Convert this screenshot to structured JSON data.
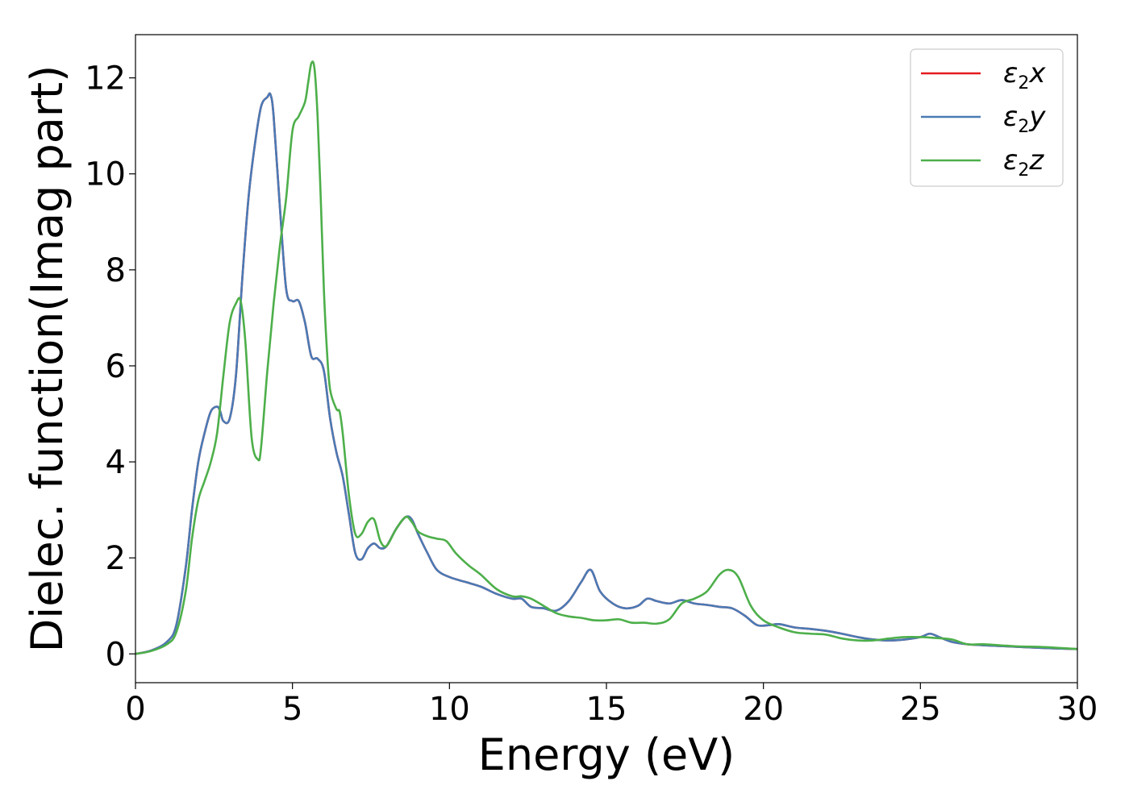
{
  "chart_data": {
    "type": "line",
    "xlabel": "Energy (eV)",
    "ylabel": "Dielec. function(Imag part)",
    "xlim": [
      0,
      30
    ],
    "ylim": [
      -0.6,
      12.9
    ],
    "xticks": [
      0,
      5,
      10,
      15,
      20,
      25,
      30
    ],
    "yticks": [
      0,
      2,
      4,
      6,
      8,
      10,
      12
    ],
    "legend_placement": "top-right",
    "grid": false,
    "series": [
      {
        "name": "ε2x",
        "legend_base": "ε",
        "legend_sub": "2",
        "legend_suffix": "x",
        "color": "#e41a1c",
        "x": [
          0,
          0.5,
          1,
          1.3,
          1.6,
          1.8,
          2,
          2.2,
          2.4,
          2.6,
          2.7,
          2.8,
          3,
          3.2,
          3.4,
          3.6,
          3.8,
          4,
          4.2,
          4.3,
          4.4,
          4.6,
          4.8,
          5,
          5.2,
          5.4,
          5.6,
          5.8,
          6,
          6.2,
          6.4,
          6.6,
          6.8,
          7,
          7.2,
          7.4,
          7.6,
          7.8,
          8,
          8.3,
          8.6,
          8.8,
          9,
          9.3,
          9.6,
          10,
          10.5,
          11,
          11.5,
          12,
          12.3,
          12.6,
          13,
          13.4,
          13.8,
          14.2,
          14.5,
          14.8,
          15.2,
          15.6,
          16,
          16.3,
          16.6,
          17,
          17.4,
          17.8,
          18.2,
          18.6,
          19,
          19.4,
          19.8,
          20.2,
          20.5,
          21,
          21.5,
          22,
          22.5,
          23,
          23.5,
          24,
          24.5,
          25,
          25.3,
          25.6,
          26,
          26.5,
          27,
          28,
          29,
          30
        ],
        "y": [
          0,
          0.07,
          0.25,
          0.6,
          1.8,
          3,
          4,
          4.6,
          5.05,
          5.15,
          5.05,
          4.85,
          4.9,
          5.8,
          7.8,
          9.5,
          10.6,
          11.4,
          11.6,
          11.65,
          11.2,
          9.3,
          7.6,
          7.35,
          7.35,
          6.9,
          6.2,
          6.15,
          5.9,
          4.9,
          4.2,
          3.7,
          2.9,
          2.1,
          1.97,
          2.2,
          2.3,
          2.2,
          2.25,
          2.6,
          2.85,
          2.8,
          2.5,
          2.1,
          1.75,
          1.6,
          1.5,
          1.4,
          1.25,
          1.15,
          1.15,
          0.98,
          0.95,
          0.9,
          1.1,
          1.5,
          1.75,
          1.3,
          1.05,
          0.95,
          1,
          1.15,
          1.1,
          1.05,
          1.12,
          1.05,
          1.02,
          0.98,
          0.95,
          0.8,
          0.6,
          0.6,
          0.62,
          0.55,
          0.52,
          0.48,
          0.42,
          0.35,
          0.3,
          0.28,
          0.3,
          0.35,
          0.42,
          0.35,
          0.25,
          0.2,
          0.18,
          0.15,
          0.12,
          0.1
        ]
      },
      {
        "name": "ε2y",
        "legend_base": "ε",
        "legend_sub": "2",
        "legend_suffix": "y",
        "color": "#4a7ab5",
        "x": [
          0,
          0.5,
          1,
          1.3,
          1.6,
          1.8,
          2,
          2.2,
          2.4,
          2.6,
          2.7,
          2.8,
          3,
          3.2,
          3.4,
          3.6,
          3.8,
          4,
          4.2,
          4.3,
          4.4,
          4.6,
          4.8,
          5,
          5.2,
          5.4,
          5.6,
          5.8,
          6,
          6.2,
          6.4,
          6.6,
          6.8,
          7,
          7.2,
          7.4,
          7.6,
          7.8,
          8,
          8.3,
          8.6,
          8.8,
          9,
          9.3,
          9.6,
          10,
          10.5,
          11,
          11.5,
          12,
          12.3,
          12.6,
          13,
          13.4,
          13.8,
          14.2,
          14.5,
          14.8,
          15.2,
          15.6,
          16,
          16.3,
          16.6,
          17,
          17.4,
          17.8,
          18.2,
          18.6,
          19,
          19.4,
          19.8,
          20.2,
          20.5,
          21,
          21.5,
          22,
          22.5,
          23,
          23.5,
          24,
          24.5,
          25,
          25.3,
          25.6,
          26,
          26.5,
          27,
          28,
          29,
          30
        ],
        "y": [
          0,
          0.07,
          0.25,
          0.6,
          1.8,
          3,
          4,
          4.6,
          5.05,
          5.15,
          5.05,
          4.85,
          4.9,
          5.8,
          7.8,
          9.5,
          10.6,
          11.4,
          11.6,
          11.65,
          11.2,
          9.3,
          7.6,
          7.35,
          7.35,
          6.9,
          6.2,
          6.15,
          5.9,
          4.9,
          4.2,
          3.7,
          2.9,
          2.1,
          1.97,
          2.2,
          2.3,
          2.2,
          2.25,
          2.6,
          2.85,
          2.8,
          2.5,
          2.1,
          1.75,
          1.6,
          1.5,
          1.4,
          1.25,
          1.15,
          1.15,
          0.98,
          0.95,
          0.9,
          1.1,
          1.5,
          1.75,
          1.3,
          1.05,
          0.95,
          1,
          1.15,
          1.1,
          1.05,
          1.12,
          1.05,
          1.02,
          0.98,
          0.95,
          0.8,
          0.6,
          0.6,
          0.62,
          0.55,
          0.52,
          0.48,
          0.42,
          0.35,
          0.3,
          0.28,
          0.3,
          0.35,
          0.42,
          0.35,
          0.25,
          0.2,
          0.18,
          0.15,
          0.12,
          0.1
        ]
      },
      {
        "name": "ε2z",
        "legend_base": "ε",
        "legend_sub": "2",
        "legend_suffix": "z",
        "color": "#4daf4a",
        "x": [
          0,
          0.5,
          1,
          1.3,
          1.6,
          1.8,
          2,
          2.2,
          2.4,
          2.6,
          2.8,
          3,
          3.2,
          3.35,
          3.5,
          3.7,
          3.9,
          4,
          4.2,
          4.4,
          4.6,
          4.8,
          5,
          5.2,
          5.4,
          5.5,
          5.6,
          5.7,
          5.8,
          5.9,
          6,
          6.1,
          6.2,
          6.4,
          6.5,
          6.6,
          6.8,
          7,
          7.2,
          7.4,
          7.6,
          7.8,
          8,
          8.3,
          8.6,
          8.8,
          9,
          9.3,
          9.6,
          9.9,
          10.2,
          10.6,
          11,
          11.5,
          12,
          12.3,
          12.6,
          13,
          13.4,
          13.8,
          14.2,
          14.6,
          15,
          15.4,
          15.8,
          16.2,
          16.6,
          17,
          17.4,
          17.8,
          18.2,
          18.6,
          18.9,
          19.2,
          19.6,
          20,
          20.5,
          21,
          21.5,
          22,
          22.5,
          23,
          23.5,
          24,
          24.5,
          25,
          25.5,
          26,
          26.5,
          27,
          28,
          29,
          30
        ],
        "y": [
          0,
          0.06,
          0.2,
          0.45,
          1.3,
          2.4,
          3.2,
          3.6,
          4,
          4.6,
          5.8,
          6.9,
          7.3,
          7.35,
          6.5,
          4.5,
          4.05,
          4.3,
          5.9,
          7.3,
          8.5,
          9.5,
          10.9,
          11.2,
          11.5,
          11.9,
          12.3,
          12.2,
          11.2,
          9.5,
          7.6,
          6.3,
          5.5,
          5.1,
          5.05,
          4.6,
          3.3,
          2.5,
          2.5,
          2.75,
          2.8,
          2.35,
          2.25,
          2.6,
          2.85,
          2.75,
          2.55,
          2.45,
          2.4,
          2.35,
          2.1,
          1.85,
          1.65,
          1.35,
          1.2,
          1.2,
          1.15,
          1,
          0.85,
          0.78,
          0.75,
          0.7,
          0.7,
          0.72,
          0.65,
          0.65,
          0.63,
          0.72,
          1.05,
          1.15,
          1.3,
          1.65,
          1.75,
          1.6,
          1.0,
          0.7,
          0.55,
          0.45,
          0.42,
          0.4,
          0.32,
          0.28,
          0.28,
          0.32,
          0.35,
          0.35,
          0.33,
          0.3,
          0.2,
          0.2,
          0.16,
          0.14,
          0.1
        ]
      }
    ]
  }
}
